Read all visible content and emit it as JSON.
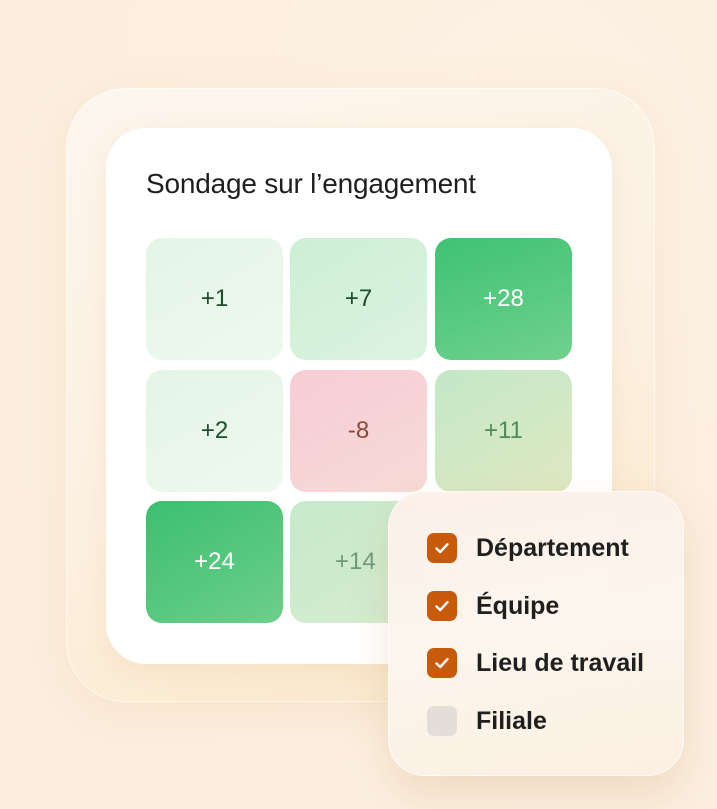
{
  "survey": {
    "title": "Sondage sur l’engagement",
    "cells": [
      {
        "value": "+1"
      },
      {
        "value": "+7"
      },
      {
        "value": "+28"
      },
      {
        "value": "+2"
      },
      {
        "value": "-8"
      },
      {
        "value": "+11"
      },
      {
        "value": "+24"
      },
      {
        "value": "+14"
      }
    ]
  },
  "filters": {
    "items": [
      {
        "label": "Département",
        "checked": true
      },
      {
        "label": "Équipe",
        "checked": true
      },
      {
        "label": "Lieu de travail",
        "checked": true
      },
      {
        "label": "Filiale",
        "checked": false
      }
    ],
    "check_color": "#c85a0b"
  }
}
